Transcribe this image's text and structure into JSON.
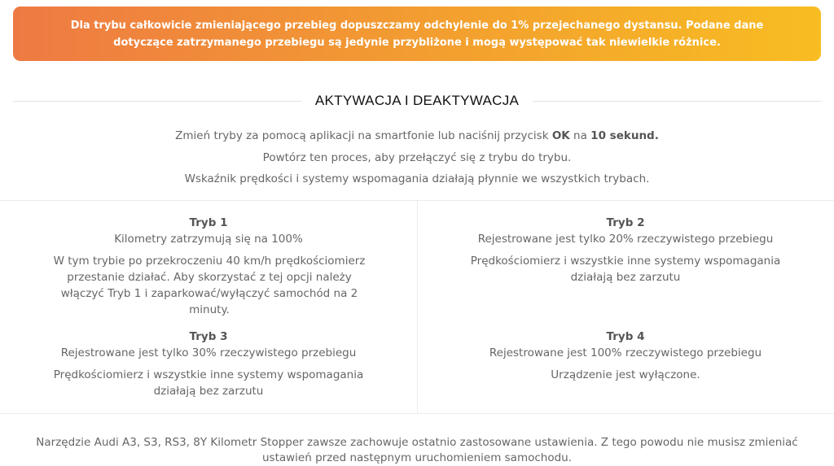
{
  "banner": {
    "text": "Dla trybu całkowicie zmieniającego przebieg dopuszczamy odchylenie do 1% przejechanego dystansu. Podane dane dotyczące zatrzymanego przebiegu są jedynie przybliżone i mogą występować tak niewielkie różnice.",
    "gradient": [
      "#ee7a43",
      "#f8bd22"
    ]
  },
  "section": {
    "title": "AKTYWACJA I DEAKTYWACJA"
  },
  "intro": {
    "line1_pre": "Zmień tryby za pomocą aplikacji na smartfonie lub naciśnij przycisk ",
    "line1_ok": "OK",
    "line1_mid": " na ",
    "line1_time": "10 sekund.",
    "line2": "Powtórz ten proces, aby przełączyć się z trybu do trybu.",
    "line3": "Wskaźnik prędkości i systemy wspomagania działają płynnie we wszystkich trybach."
  },
  "modes": [
    {
      "title": "Tryb 1",
      "subtitle": "Kilometry zatrzymują się na 100%",
      "description": "W tym trybie po przekroczeniu 40 km/h prędkościomierz przestanie działać. Aby skorzystać z tej opcji należy włączyć Tryb 1 i zaparkować/wyłączyć samochód na 2 minuty."
    },
    {
      "title": "Tryb 2",
      "subtitle": "Rejestrowane jest tylko 20% rzeczywistego przebiegu",
      "description": "Prędkościomierz i wszystkie inne systemy wspomagania działają bez zarzutu"
    },
    {
      "title": "Tryb 3",
      "subtitle": "Rejestrowane jest tylko 30% rzeczywistego przebiegu",
      "description": "Prędkościomierz i wszystkie inne systemy wspomagania działają bez zarzutu"
    },
    {
      "title": "Tryb 4",
      "subtitle": "Rejestrowane jest 100% rzeczywistego przebiegu",
      "description": "Urządzenie jest wyłączone."
    }
  ],
  "footer": {
    "text": "Narzędzie Audi A3, S3, RS3, 8Y Kilometr Stopper zawsze zachowuje ostatnio zastosowane ustawienia. Z tego powodu nie musisz zmieniać ustawień przed następnym uruchomieniem samochodu."
  }
}
